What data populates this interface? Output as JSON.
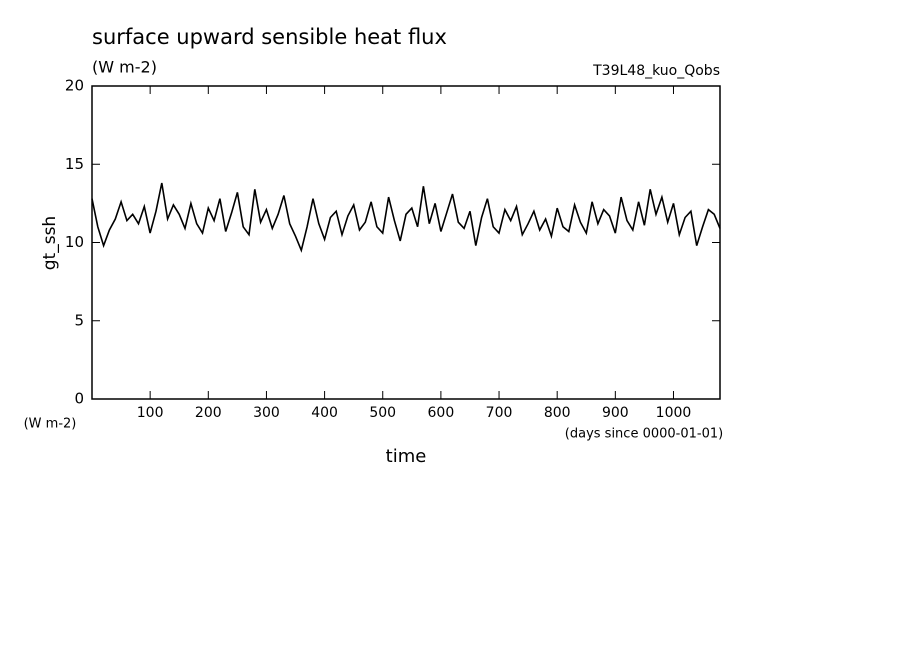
{
  "chart_data": {
    "type": "line",
    "title": "surface upward sensible heat flux",
    "subtitle": "(W m-2)",
    "annotation": "T39L48_kuo_Qobs",
    "y_label": "gt_ssh",
    "y_units": "(W m-2)",
    "x_label": "time",
    "x_units": "(days since 0000-01-01)",
    "color": "#000000",
    "x": [
      0,
      10,
      20,
      30,
      40,
      50,
      60,
      70,
      80,
      90,
      100,
      110,
      120,
      130,
      140,
      150,
      160,
      170,
      180,
      190,
      200,
      210,
      220,
      230,
      240,
      250,
      260,
      270,
      280,
      290,
      300,
      310,
      320,
      330,
      340,
      350,
      360,
      370,
      380,
      390,
      400,
      410,
      420,
      430,
      440,
      450,
      460,
      470,
      480,
      490,
      500,
      510,
      520,
      530,
      540,
      550,
      560,
      570,
      580,
      590,
      600,
      610,
      620,
      630,
      640,
      650,
      660,
      670,
      680,
      690,
      700,
      710,
      720,
      730,
      740,
      750,
      760,
      770,
      780,
      790,
      800,
      810,
      820,
      830,
      840,
      850,
      860,
      870,
      880,
      890,
      900,
      910,
      920,
      930,
      940,
      950,
      960,
      970,
      980,
      990,
      1000,
      1010,
      1020,
      1030,
      1040,
      1050,
      1060,
      1070,
      1080
    ],
    "values": [
      12.8,
      11.0,
      9.8,
      10.8,
      11.5,
      12.6,
      11.4,
      11.8,
      11.2,
      12.3,
      10.6,
      12.0,
      13.8,
      11.5,
      12.4,
      11.8,
      10.9,
      12.5,
      11.2,
      10.6,
      12.2,
      11.4,
      12.8,
      10.7,
      11.9,
      13.2,
      11.0,
      10.5,
      13.4,
      11.3,
      12.1,
      10.9,
      11.8,
      13.0,
      11.2,
      10.4,
      9.5,
      11.0,
      12.8,
      11.2,
      10.2,
      11.6,
      12.0,
      10.5,
      11.7,
      12.4,
      10.8,
      11.3,
      12.6,
      11.0,
      10.6,
      12.9,
      11.4,
      10.1,
      11.8,
      12.2,
      11.0,
      13.6,
      11.2,
      12.5,
      10.7,
      11.9,
      13.1,
      11.3,
      10.9,
      12.0,
      9.8,
      11.6,
      12.8,
      11.0,
      10.6,
      12.1,
      11.4,
      12.3,
      10.5,
      11.2,
      12.0,
      10.8,
      11.5,
      10.4,
      12.2,
      11.0,
      10.7,
      12.4,
      11.3,
      10.6,
      12.6,
      11.2,
      12.1,
      11.7,
      10.6,
      12.9,
      11.4,
      10.8,
      12.6,
      11.1,
      13.4,
      11.8,
      12.9,
      11.3,
      12.5,
      10.5,
      11.6,
      12.0,
      9.8,
      11.0,
      12.1,
      11.8,
      10.9
    ],
    "xlim": [
      0,
      1080
    ],
    "ylim": [
      0,
      20
    ],
    "xticks": [
      100,
      200,
      300,
      400,
      500,
      600,
      700,
      800,
      900,
      1000
    ],
    "yticks": [
      0,
      5,
      10,
      15,
      20
    ]
  }
}
